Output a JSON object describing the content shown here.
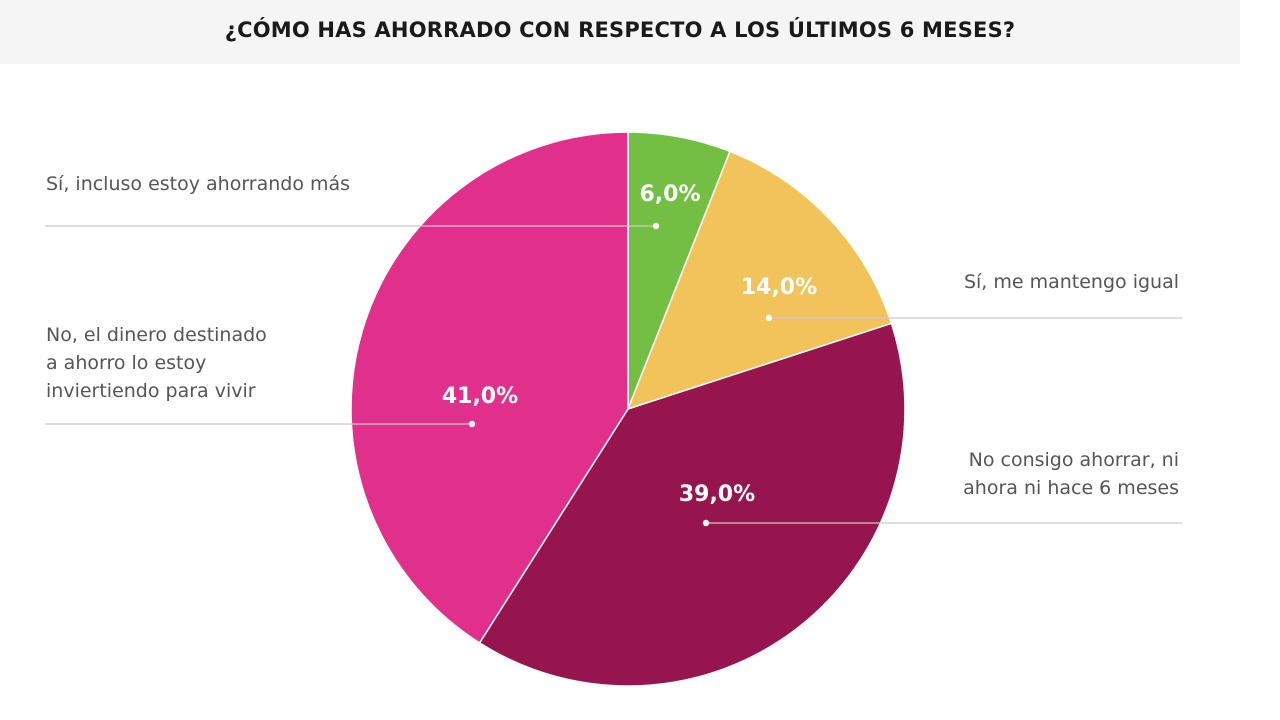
{
  "chart_data": {
    "type": "pie",
    "title": "¿CÓMO HAS AHORRADO CON RESPECTO A LOS ÚLTIMOS 6 MESES?",
    "slices": [
      {
        "label": "Sí, incluso estoy ahorrando más",
        "value": 6.0,
        "display": "6,0%",
        "color": "#72bf44"
      },
      {
        "label": "Sí, me mantengo igual",
        "value": 14.0,
        "display": "14,0%",
        "color": "#f2c35a"
      },
      {
        "label": "No consigo ahorrar, ni ahora ni hace 6 meses",
        "value": 39.0,
        "display": "39,0%",
        "color": "#96154f"
      },
      {
        "label": "No, el dinero destinado a ahorro lo estoy invirtiendo para vivir",
        "value": 41.0,
        "display": "41,0%",
        "color": "#e0308c"
      }
    ],
    "legend_lines": [
      [
        "Sí, incluso estoy ahorrando más"
      ],
      [
        "Sí, me mantengo igual"
      ],
      [
        "No consigo ahorrar, ni",
        "ahora ni hace 6 meses"
      ],
      [
        "No, el dinero destinado",
        "a ahorro lo estoy",
        "inviertiendo para vivir"
      ]
    ],
    "start_angle": "12 o'clock",
    "direction": "clockwise"
  }
}
